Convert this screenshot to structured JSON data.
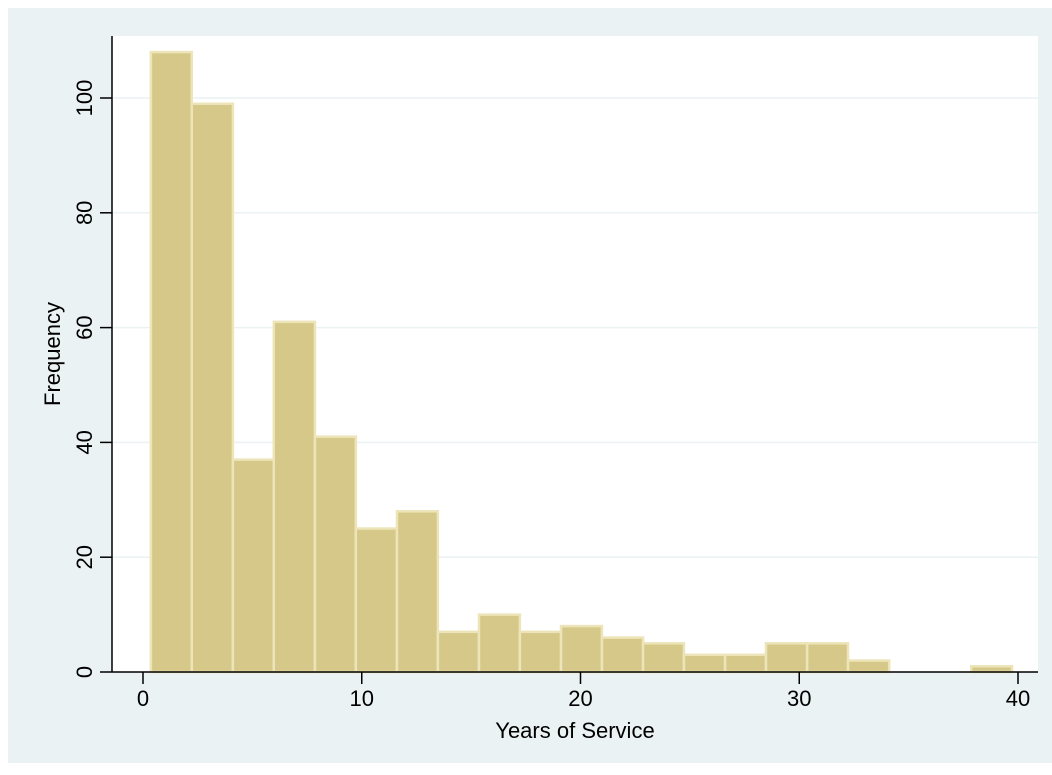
{
  "chart_data": {
    "type": "bar",
    "subtype": "histogram",
    "xlabel": "Years of Service",
    "ylabel": "Frequency",
    "xlim": [
      -1,
      40.5
    ],
    "ylim": [
      0,
      112
    ],
    "xticks": [
      0,
      10,
      20,
      30,
      40
    ],
    "yticks": [
      0,
      20,
      40,
      60,
      80,
      100
    ],
    "grid": "horizontal",
    "bin_edges": [
      0.36,
      2.23,
      4.11,
      5.98,
      7.86,
      9.73,
      11.61,
      13.48,
      15.36,
      17.23,
      19.11,
      20.98,
      22.86,
      24.73,
      26.61,
      28.48,
      30.36,
      32.23,
      34.11,
      35.98,
      37.86,
      39.73
    ],
    "values": [
      108,
      99,
      37,
      61,
      41,
      25,
      28,
      7,
      10,
      7,
      8,
      6,
      5,
      3,
      3,
      5,
      5,
      2,
      0,
      0,
      1
    ],
    "colors": {
      "outer_background": "#eaf2f3",
      "plot_background": "#ffffff",
      "bar_fill": "#d5c888",
      "bar_edge": "#ede5b9",
      "grid": "#eaf2f3",
      "axis": "#000000"
    }
  }
}
